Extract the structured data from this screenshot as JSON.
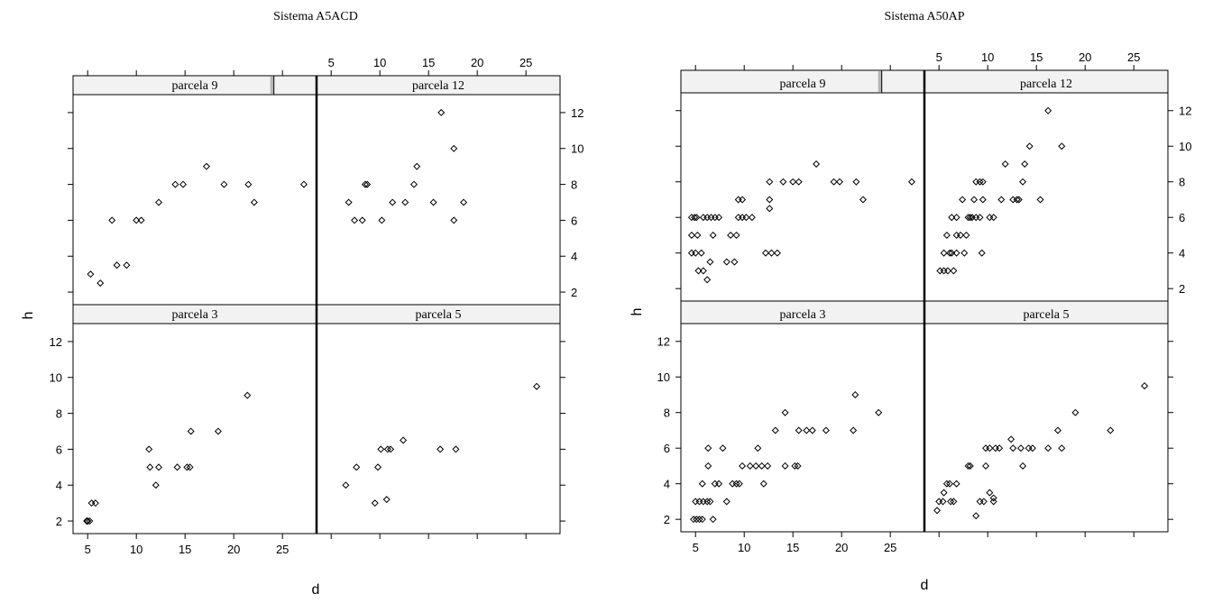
{
  "chart_data": [
    {
      "type": "scatter",
      "title": "Sistema A5ACD",
      "xlabel": "d",
      "ylabel": "h",
      "xlim": [
        3.5,
        28.5
      ],
      "ylim": [
        1.3,
        13.0
      ],
      "xticks": [
        5,
        10,
        15,
        20,
        25
      ],
      "yticks": [
        2,
        4,
        6,
        8,
        10,
        12
      ],
      "marker_color": "#000000",
      "strip_color": "#f2f2f2",
      "panels": [
        {
          "name": "parcela 9",
          "row": 0,
          "col": 0,
          "strip_mark": 0.81,
          "points": [
            [
              5.3,
              3.0
            ],
            [
              6.3,
              2.5
            ],
            [
              7.5,
              6.0
            ],
            [
              8.0,
              3.5
            ],
            [
              9.0,
              3.5
            ],
            [
              10.0,
              6.0
            ],
            [
              10.5,
              6.0
            ],
            [
              12.3,
              7.0
            ],
            [
              14.0,
              8.0
            ],
            [
              14.8,
              8.0
            ],
            [
              17.2,
              9.0
            ],
            [
              19.0,
              8.0
            ],
            [
              21.5,
              8.0
            ],
            [
              22.1,
              7.0
            ],
            [
              27.2,
              8.0
            ]
          ]
        },
        {
          "name": "parcela 12",
          "row": 0,
          "col": 1,
          "strip_mark": 1.0,
          "points": [
            [
              6.8,
              7.0
            ],
            [
              7.4,
              6.0
            ],
            [
              8.2,
              6.0
            ],
            [
              8.5,
              8.0
            ],
            [
              8.7,
              8.0
            ],
            [
              10.2,
              6.0
            ],
            [
              11.3,
              7.0
            ],
            [
              12.6,
              7.0
            ],
            [
              13.5,
              8.0
            ],
            [
              13.8,
              9.0
            ],
            [
              15.5,
              7.0
            ],
            [
              16.3,
              12.0
            ],
            [
              17.6,
              10.0
            ],
            [
              17.6,
              6.0
            ],
            [
              18.6,
              7.0
            ]
          ]
        },
        {
          "name": "parcela 3",
          "row": 1,
          "col": 0,
          "strip_mark": 1.0,
          "points": [
            [
              4.9,
              2.0
            ],
            [
              5.0,
              2.0
            ],
            [
              5.2,
              2.0
            ],
            [
              5.4,
              3.0
            ],
            [
              5.8,
              3.0
            ],
            [
              11.3,
              6.0
            ],
            [
              11.4,
              5.0
            ],
            [
              12.0,
              4.0
            ],
            [
              12.3,
              5.0
            ],
            [
              14.2,
              5.0
            ],
            [
              15.2,
              5.0
            ],
            [
              15.5,
              5.0
            ],
            [
              15.6,
              7.0
            ],
            [
              18.4,
              7.0
            ],
            [
              21.4,
              9.0
            ]
          ]
        },
        {
          "name": "parcela 5",
          "row": 1,
          "col": 1,
          "strip_mark": 1.0,
          "points": [
            [
              6.5,
              4.0
            ],
            [
              7.6,
              5.0
            ],
            [
              9.5,
              3.0
            ],
            [
              9.8,
              5.0
            ],
            [
              10.1,
              6.0
            ],
            [
              10.7,
              3.2
            ],
            [
              10.8,
              6.0
            ],
            [
              11.1,
              6.0
            ],
            [
              12.4,
              6.5
            ],
            [
              16.2,
              6.0
            ],
            [
              17.8,
              6.0
            ],
            [
              26.1,
              9.5
            ]
          ]
        }
      ]
    },
    {
      "type": "scatter",
      "title": "Sistema A50AP",
      "xlabel": "d",
      "ylabel": "h",
      "xlim": [
        3.5,
        28.5
      ],
      "ylim": [
        1.3,
        13.0
      ],
      "xticks": [
        5,
        10,
        15,
        20,
        25
      ],
      "yticks": [
        2,
        4,
        6,
        8,
        10,
        12
      ],
      "marker_color": "#000000",
      "strip_color": "#f2f2f2",
      "panels": [
        {
          "name": "parcela 9",
          "row": 0,
          "col": 0,
          "strip_mark": 0.81,
          "points": [
            [
              4.6,
              6.0
            ],
            [
              4.9,
              6.0
            ],
            [
              5.1,
              6.0
            ],
            [
              4.6,
              5.0
            ],
            [
              5.2,
              5.0
            ],
            [
              4.6,
              4.0
            ],
            [
              5.0,
              4.0
            ],
            [
              5.6,
              4.0
            ],
            [
              5.3,
              3.0
            ],
            [
              5.8,
              3.0
            ],
            [
              6.2,
              2.5
            ],
            [
              6.5,
              3.5
            ],
            [
              5.8,
              6.0
            ],
            [
              6.2,
              6.0
            ],
            [
              6.6,
              6.0
            ],
            [
              7.0,
              6.0
            ],
            [
              7.4,
              6.0
            ],
            [
              6.8,
              5.0
            ],
            [
              8.2,
              3.5
            ],
            [
              8.6,
              5.0
            ],
            [
              9.0,
              3.5
            ],
            [
              9.2,
              5.0
            ],
            [
              9.4,
              6.0
            ],
            [
              9.4,
              7.0
            ],
            [
              9.8,
              6.0
            ],
            [
              9.8,
              7.0
            ],
            [
              10.2,
              6.0
            ],
            [
              10.8,
              6.0
            ],
            [
              12.2,
              4.0
            ],
            [
              12.6,
              6.5
            ],
            [
              12.6,
              7.0
            ],
            [
              12.6,
              8.0
            ],
            [
              12.8,
              4.0
            ],
            [
              13.4,
              4.0
            ],
            [
              14.0,
              8.0
            ],
            [
              15.0,
              8.0
            ],
            [
              15.6,
              8.0
            ],
            [
              17.4,
              9.0
            ],
            [
              19.2,
              8.0
            ],
            [
              19.8,
              8.0
            ],
            [
              21.5,
              8.0
            ],
            [
              22.2,
              7.0
            ],
            [
              27.2,
              8.0
            ]
          ]
        },
        {
          "name": "parcela 12",
          "row": 0,
          "col": 1,
          "strip_mark": 1.0,
          "points": [
            [
              5.1,
              3.0
            ],
            [
              5.5,
              3.0
            ],
            [
              5.9,
              3.0
            ],
            [
              6.1,
              4.0
            ],
            [
              5.5,
              4.0
            ],
            [
              5.8,
              5.0
            ],
            [
              6.5,
              3.0
            ],
            [
              6.3,
              4.0
            ],
            [
              6.3,
              6.0
            ],
            [
              6.8,
              4.0
            ],
            [
              6.8,
              5.0
            ],
            [
              6.8,
              6.0
            ],
            [
              7.2,
              5.0
            ],
            [
              7.4,
              7.0
            ],
            [
              7.6,
              4.0
            ],
            [
              7.8,
              5.0
            ],
            [
              8.0,
              6.0
            ],
            [
              8.2,
              6.0
            ],
            [
              8.4,
              6.0
            ],
            [
              8.8,
              6.0
            ],
            [
              8.6,
              7.0
            ],
            [
              8.8,
              8.0
            ],
            [
              9.2,
              6.0
            ],
            [
              9.2,
              8.0
            ],
            [
              9.4,
              4.0
            ],
            [
              9.5,
              8.0
            ],
            [
              9.5,
              7.0
            ],
            [
              10.2,
              6.0
            ],
            [
              10.6,
              6.0
            ],
            [
              11.4,
              7.0
            ],
            [
              11.8,
              9.0
            ],
            [
              12.6,
              7.0
            ],
            [
              13.0,
              7.0
            ],
            [
              13.2,
              7.0
            ],
            [
              13.6,
              8.0
            ],
            [
              13.8,
              9.0
            ],
            [
              14.3,
              10.0
            ],
            [
              15.4,
              7.0
            ],
            [
              16.2,
              12.0
            ],
            [
              17.6,
              10.0
            ]
          ]
        },
        {
          "name": "parcela 3",
          "row": 1,
          "col": 0,
          "strip_mark": 1.0,
          "points": [
            [
              4.8,
              2.0
            ],
            [
              5.1,
              2.0
            ],
            [
              5.4,
              2.0
            ],
            [
              5.7,
              2.0
            ],
            [
              5.0,
              3.0
            ],
            [
              5.4,
              3.0
            ],
            [
              5.8,
              3.0
            ],
            [
              6.2,
              3.0
            ],
            [
              6.5,
              3.0
            ],
            [
              5.7,
              4.0
            ],
            [
              6.3,
              5.0
            ],
            [
              6.3,
              6.0
            ],
            [
              6.8,
              2.0
            ],
            [
              7.0,
              4.0
            ],
            [
              7.4,
              4.0
            ],
            [
              7.8,
              6.0
            ],
            [
              8.2,
              3.0
            ],
            [
              8.8,
              4.0
            ],
            [
              9.2,
              4.0
            ],
            [
              9.5,
              4.0
            ],
            [
              9.8,
              5.0
            ],
            [
              10.6,
              5.0
            ],
            [
              11.2,
              5.0
            ],
            [
              11.4,
              6.0
            ],
            [
              11.8,
              5.0
            ],
            [
              12.0,
              4.0
            ],
            [
              12.4,
              5.0
            ],
            [
              13.2,
              7.0
            ],
            [
              14.2,
              8.0
            ],
            [
              14.2,
              5.0
            ],
            [
              15.2,
              5.0
            ],
            [
              15.5,
              5.0
            ],
            [
              15.6,
              7.0
            ],
            [
              16.4,
              7.0
            ],
            [
              17.0,
              7.0
            ],
            [
              18.4,
              7.0
            ],
            [
              21.2,
              7.0
            ],
            [
              21.4,
              9.0
            ],
            [
              23.8,
              8.0
            ]
          ]
        },
        {
          "name": "parcela 5",
          "row": 1,
          "col": 1,
          "strip_mark": 1.0,
          "points": [
            [
              4.8,
              2.5
            ],
            [
              5.0,
              3.0
            ],
            [
              5.4,
              3.0
            ],
            [
              5.5,
              3.5
            ],
            [
              5.8,
              4.0
            ],
            [
              6.1,
              4.0
            ],
            [
              6.2,
              3.0
            ],
            [
              6.5,
              3.0
            ],
            [
              6.8,
              4.0
            ],
            [
              8.0,
              5.0
            ],
            [
              8.2,
              5.0
            ],
            [
              8.8,
              2.2
            ],
            [
              9.2,
              3.0
            ],
            [
              9.6,
              3.0
            ],
            [
              9.8,
              5.0
            ],
            [
              9.8,
              6.0
            ],
            [
              10.2,
              3.5
            ],
            [
              10.2,
              6.0
            ],
            [
              10.6,
              3.0
            ],
            [
              10.6,
              3.2
            ],
            [
              10.8,
              6.0
            ],
            [
              11.2,
              6.0
            ],
            [
              12.4,
              6.5
            ],
            [
              12.6,
              6.0
            ],
            [
              13.4,
              6.0
            ],
            [
              13.6,
              5.0
            ],
            [
              14.2,
              6.0
            ],
            [
              14.6,
              6.0
            ],
            [
              16.2,
              6.0
            ],
            [
              17.2,
              7.0
            ],
            [
              17.6,
              6.0
            ],
            [
              19.0,
              8.0
            ],
            [
              22.6,
              7.0
            ],
            [
              26.1,
              9.5
            ]
          ]
        }
      ]
    }
  ]
}
